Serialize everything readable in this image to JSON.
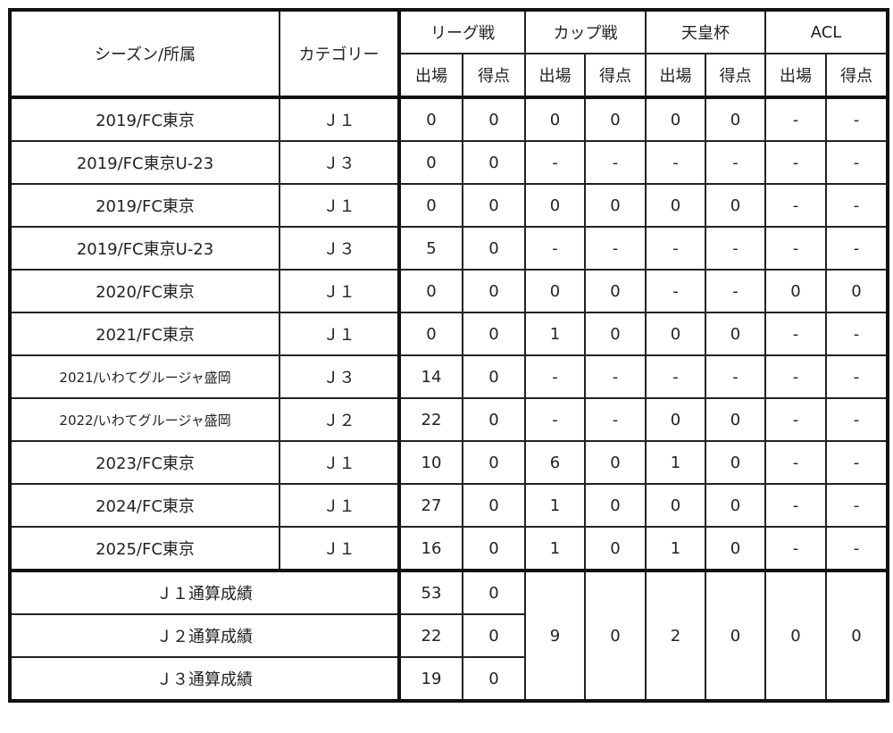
{
  "headers": {
    "season": "シーズン/所属",
    "category": "カテゴリー",
    "groups": [
      "リーグ戦",
      "カップ戦",
      "天皇杯",
      "ACL"
    ],
    "apps": "出場",
    "goals": "得点"
  },
  "rows": [
    {
      "season": "2019/FC東京",
      "category": "Ｊ１",
      "stats": [
        "0",
        "0",
        "0",
        "0",
        "0",
        "0",
        "-",
        "-"
      ]
    },
    {
      "season": "2019/FC東京U-23",
      "category": "Ｊ３",
      "stats": [
        "0",
        "0",
        "-",
        "-",
        "-",
        "-",
        "-",
        "-"
      ]
    },
    {
      "season": "2019/FC東京",
      "category": "Ｊ１",
      "stats": [
        "0",
        "0",
        "0",
        "0",
        "0",
        "0",
        "-",
        "-"
      ]
    },
    {
      "season": "2019/FC東京U-23",
      "category": "Ｊ３",
      "stats": [
        "5",
        "0",
        "-",
        "-",
        "-",
        "-",
        "-",
        "-"
      ]
    },
    {
      "season": "2020/FC東京",
      "category": "Ｊ１",
      "stats": [
        "0",
        "0",
        "0",
        "0",
        "-",
        "-",
        "0",
        "0"
      ]
    },
    {
      "season": "2021/FC東京",
      "category": "Ｊ１",
      "stats": [
        "0",
        "0",
        "1",
        "0",
        "0",
        "0",
        "-",
        "-"
      ]
    },
    {
      "season": "2021/いわてグルージャ盛岡",
      "category": "Ｊ３",
      "stats": [
        "14",
        "0",
        "-",
        "-",
        "-",
        "-",
        "-",
        "-"
      ]
    },
    {
      "season": "2022/いわてグルージャ盛岡",
      "category": "Ｊ２",
      "stats": [
        "22",
        "0",
        "-",
        "-",
        "0",
        "0",
        "-",
        "-"
      ]
    },
    {
      "season": "2023/FC東京",
      "category": "Ｊ１",
      "stats": [
        "10",
        "0",
        "6",
        "0",
        "1",
        "0",
        "-",
        "-"
      ]
    },
    {
      "season": "2024/FC東京",
      "category": "Ｊ１",
      "stats": [
        "27",
        "0",
        "1",
        "0",
        "0",
        "0",
        "-",
        "-"
      ]
    },
    {
      "season": "2025/FC東京",
      "category": "Ｊ１",
      "stats": [
        "16",
        "0",
        "1",
        "0",
        "1",
        "0",
        "-",
        "-"
      ]
    }
  ],
  "totals": {
    "rows": [
      {
        "label": "Ｊ１通算成績",
        "apps": "53",
        "goals": "0"
      },
      {
        "label": "Ｊ２通算成績",
        "apps": "22",
        "goals": "0"
      },
      {
        "label": "Ｊ３通算成績",
        "apps": "19",
        "goals": "0"
      }
    ],
    "combined": [
      "9",
      "0",
      "2",
      "0",
      "0",
      "0"
    ]
  }
}
